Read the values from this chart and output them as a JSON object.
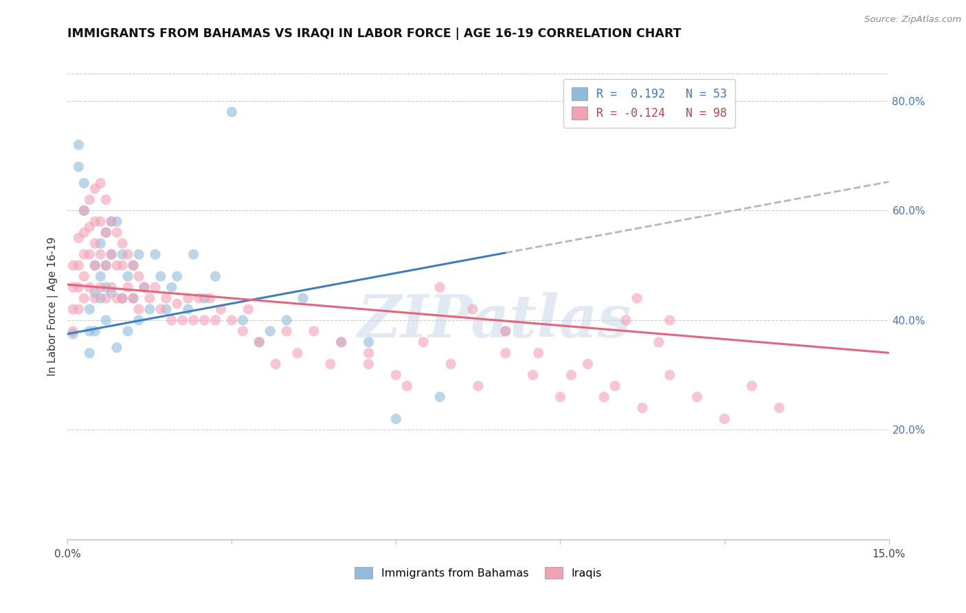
{
  "title": "IMMIGRANTS FROM BAHAMAS VS IRAQI IN LABOR FORCE | AGE 16-19 CORRELATION CHART",
  "source": "Source: ZipAtlas.com",
  "ylabel": "In Labor Force | Age 16-19",
  "xlim": [
    0.0,
    0.15
  ],
  "ylim": [
    0.0,
    0.85
  ],
  "y_tick_values": [
    0.2,
    0.4,
    0.6,
    0.8
  ],
  "blue_color": "#8fbcdb",
  "pink_color": "#f4a0b5",
  "blue_line_color": "#3a7fbf",
  "pink_line_color": "#e8627a",
  "dashed_line_color": "#b0b8c4",
  "watermark": "ZIPatlas",
  "watermark_color": "#c5d5e8",
  "blue_label": "Immigrants from Bahamas",
  "pink_label": "Iraqis",
  "legend_blue_text": "R =  0.192   N = 53",
  "legend_pink_text": "R = -0.124   N = 98",
  "blue_line_x_solid_end": 0.08,
  "blue_line_intercept": 0.375,
  "blue_line_slope": 1.85,
  "pink_line_intercept": 0.465,
  "pink_line_slope": -0.83,
  "bahamas_x": [
    0.001,
    0.002,
    0.002,
    0.003,
    0.003,
    0.004,
    0.004,
    0.004,
    0.005,
    0.005,
    0.005,
    0.006,
    0.006,
    0.006,
    0.007,
    0.007,
    0.007,
    0.007,
    0.008,
    0.008,
    0.008,
    0.009,
    0.009,
    0.01,
    0.01,
    0.011,
    0.011,
    0.012,
    0.012,
    0.013,
    0.013,
    0.014,
    0.015,
    0.016,
    0.017,
    0.018,
    0.019,
    0.02,
    0.022,
    0.023,
    0.025,
    0.027,
    0.03,
    0.032,
    0.035,
    0.037,
    0.04,
    0.043,
    0.05,
    0.055,
    0.06,
    0.068,
    0.08
  ],
  "bahamas_y": [
    0.375,
    0.72,
    0.68,
    0.65,
    0.6,
    0.42,
    0.38,
    0.34,
    0.5,
    0.45,
    0.38,
    0.54,
    0.48,
    0.44,
    0.56,
    0.5,
    0.46,
    0.4,
    0.58,
    0.52,
    0.45,
    0.58,
    0.35,
    0.52,
    0.44,
    0.48,
    0.38,
    0.5,
    0.44,
    0.52,
    0.4,
    0.46,
    0.42,
    0.52,
    0.48,
    0.42,
    0.46,
    0.48,
    0.42,
    0.52,
    0.44,
    0.48,
    0.78,
    0.4,
    0.36,
    0.38,
    0.4,
    0.44,
    0.36,
    0.36,
    0.22,
    0.26,
    0.38
  ],
  "iraqi_x": [
    0.001,
    0.001,
    0.001,
    0.001,
    0.002,
    0.002,
    0.002,
    0.002,
    0.003,
    0.003,
    0.003,
    0.003,
    0.003,
    0.004,
    0.004,
    0.004,
    0.004,
    0.005,
    0.005,
    0.005,
    0.005,
    0.005,
    0.006,
    0.006,
    0.006,
    0.006,
    0.007,
    0.007,
    0.007,
    0.007,
    0.008,
    0.008,
    0.008,
    0.009,
    0.009,
    0.009,
    0.01,
    0.01,
    0.01,
    0.011,
    0.011,
    0.012,
    0.012,
    0.013,
    0.013,
    0.014,
    0.015,
    0.016,
    0.017,
    0.018,
    0.019,
    0.02,
    0.021,
    0.022,
    0.023,
    0.024,
    0.025,
    0.026,
    0.027,
    0.028,
    0.03,
    0.032,
    0.033,
    0.035,
    0.038,
    0.04,
    0.042,
    0.045,
    0.048,
    0.05,
    0.055,
    0.06,
    0.065,
    0.07,
    0.075,
    0.08,
    0.085,
    0.09,
    0.095,
    0.1,
    0.105,
    0.11,
    0.115,
    0.12,
    0.125,
    0.13,
    0.102,
    0.108,
    0.055,
    0.062,
    0.068,
    0.074,
    0.08,
    0.086,
    0.092,
    0.098,
    0.104,
    0.11
  ],
  "iraqi_y": [
    0.5,
    0.46,
    0.42,
    0.38,
    0.55,
    0.5,
    0.46,
    0.42,
    0.6,
    0.56,
    0.52,
    0.48,
    0.44,
    0.62,
    0.57,
    0.52,
    0.46,
    0.64,
    0.58,
    0.54,
    0.5,
    0.44,
    0.65,
    0.58,
    0.52,
    0.46,
    0.62,
    0.56,
    0.5,
    0.44,
    0.58,
    0.52,
    0.46,
    0.56,
    0.5,
    0.44,
    0.54,
    0.5,
    0.44,
    0.52,
    0.46,
    0.5,
    0.44,
    0.48,
    0.42,
    0.46,
    0.44,
    0.46,
    0.42,
    0.44,
    0.4,
    0.43,
    0.4,
    0.44,
    0.4,
    0.44,
    0.4,
    0.44,
    0.4,
    0.42,
    0.4,
    0.38,
    0.42,
    0.36,
    0.32,
    0.38,
    0.34,
    0.38,
    0.32,
    0.36,
    0.34,
    0.3,
    0.36,
    0.32,
    0.28,
    0.34,
    0.3,
    0.26,
    0.32,
    0.28,
    0.24,
    0.3,
    0.26,
    0.22,
    0.28,
    0.24,
    0.4,
    0.36,
    0.32,
    0.28,
    0.46,
    0.42,
    0.38,
    0.34,
    0.3,
    0.26,
    0.44,
    0.4
  ]
}
